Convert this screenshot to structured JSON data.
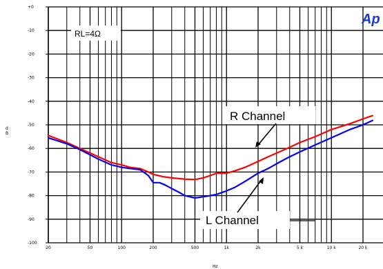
{
  "chart_data": {
    "type": "line",
    "x_scale": "log",
    "xlim": [
      20,
      20000
    ],
    "ylim": [
      -100,
      0
    ],
    "xlabel": "Hz",
    "ylabel": "d\nB",
    "x_ticks": [
      {
        "v": 20,
        "label": "20"
      },
      {
        "v": 50,
        "label": "50"
      },
      {
        "v": 100,
        "label": "100"
      },
      {
        "v": 200,
        "label": "200"
      },
      {
        "v": 500,
        "label": "500"
      },
      {
        "v": 1000,
        "label": "1k"
      },
      {
        "v": 2000,
        "label": "2k"
      },
      {
        "v": 5000,
        "label": "5 k"
      },
      {
        "v": 10000,
        "label": "10 k"
      },
      {
        "v": 20000,
        "label": "20 k"
      }
    ],
    "y_ticks": [
      {
        "v": 0,
        "label": "+0"
      },
      {
        "v": -10,
        "label": "-10"
      },
      {
        "v": -20,
        "label": "-20"
      },
      {
        "v": -30,
        "label": "-30"
      },
      {
        "v": -40,
        "label": "-40"
      },
      {
        "v": -50,
        "label": "-50"
      },
      {
        "v": -60,
        "label": "-60"
      },
      {
        "v": -70,
        "label": "-70"
      },
      {
        "v": -80,
        "label": "-80"
      },
      {
        "v": -90,
        "label": "-90"
      },
      {
        "v": -100,
        "label": "-100"
      }
    ],
    "grid": true,
    "series": [
      {
        "name": "R Channel",
        "color": "#ff0000",
        "points": [
          [
            20,
            -54.5
          ],
          [
            30,
            -57.5
          ],
          [
            40,
            -60
          ],
          [
            60,
            -63.5
          ],
          [
            80,
            -66
          ],
          [
            100,
            -67
          ],
          [
            120,
            -68
          ],
          [
            150,
            -68.5
          ],
          [
            180,
            -70
          ],
          [
            200,
            -71
          ],
          [
            250,
            -72
          ],
          [
            300,
            -72.5
          ],
          [
            400,
            -73
          ],
          [
            500,
            -73.2
          ],
          [
            600,
            -72.5
          ],
          [
            700,
            -71.5
          ],
          [
            800,
            -70.5
          ],
          [
            1000,
            -70.5
          ],
          [
            1200,
            -69.5
          ],
          [
            1500,
            -68
          ],
          [
            2000,
            -65.5
          ],
          [
            2500,
            -63.5
          ],
          [
            3000,
            -62
          ],
          [
            4000,
            -59.5
          ],
          [
            5000,
            -57.5
          ],
          [
            7000,
            -55
          ],
          [
            10000,
            -52
          ],
          [
            15000,
            -49.5
          ],
          [
            20000,
            -47.5
          ],
          [
            25000,
            -46
          ]
        ]
      },
      {
        "name": "L Channel",
        "color": "#0000ff",
        "points": [
          [
            20,
            -55.5
          ],
          [
            30,
            -58
          ],
          [
            40,
            -60.5
          ],
          [
            60,
            -64.5
          ],
          [
            80,
            -67
          ],
          [
            100,
            -68
          ],
          [
            120,
            -68.5
          ],
          [
            150,
            -69
          ],
          [
            180,
            -71.5
          ],
          [
            200,
            -74.5
          ],
          [
            230,
            -74.5
          ],
          [
            260,
            -75.5
          ],
          [
            300,
            -77
          ],
          [
            350,
            -78.5
          ],
          [
            400,
            -80
          ],
          [
            500,
            -81
          ],
          [
            600,
            -80.5
          ],
          [
            700,
            -80
          ],
          [
            800,
            -79.5
          ],
          [
            1000,
            -78
          ],
          [
            1200,
            -76.5
          ],
          [
            1500,
            -74
          ],
          [
            2000,
            -70.5
          ],
          [
            2500,
            -68.5
          ],
          [
            3000,
            -66.5
          ],
          [
            4000,
            -63.5
          ],
          [
            5000,
            -61.5
          ],
          [
            7000,
            -58.5
          ],
          [
            10000,
            -55.5
          ],
          [
            15000,
            -52
          ],
          [
            20000,
            -50
          ],
          [
            25000,
            -48
          ]
        ]
      }
    ],
    "annotations": {
      "r_channel": "R Channel",
      "l_channel": "L Channel",
      "load": "RL=4Ω",
      "logo": "Ap"
    }
  }
}
